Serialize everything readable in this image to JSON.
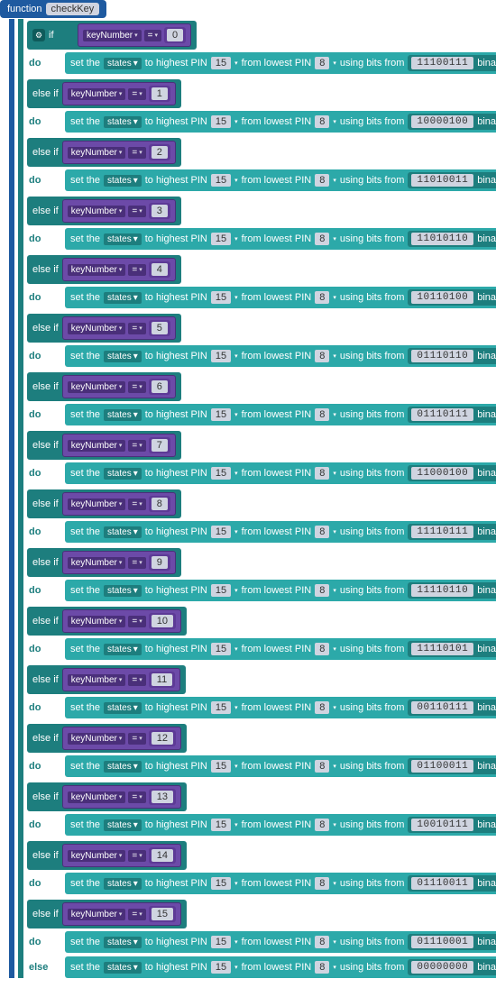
{
  "func": {
    "kw": "function",
    "name": "checkKey"
  },
  "labels": {
    "if": "if",
    "elseif": "else if",
    "else": "else",
    "do": "do",
    "setThe": "set the",
    "states": "states",
    "toHigh": "to highest PIN",
    "fromLow": "from lowest PIN",
    "usingBits": "using bits from",
    "binary": "binary",
    "keyNumber": "keyNumber",
    "eq": "="
  },
  "pins": {
    "high": "15",
    "low": "8"
  },
  "branches": [
    {
      "kw": "if",
      "n": "0",
      "bits": "11100111"
    },
    {
      "kw": "else if",
      "n": "1",
      "bits": "10000100"
    },
    {
      "kw": "else if",
      "n": "2",
      "bits": "11010011"
    },
    {
      "kw": "else if",
      "n": "3",
      "bits": "11010110"
    },
    {
      "kw": "else if",
      "n": "4",
      "bits": "10110100"
    },
    {
      "kw": "else if",
      "n": "5",
      "bits": "01110110"
    },
    {
      "kw": "else if",
      "n": "6",
      "bits": "01110111"
    },
    {
      "kw": "else if",
      "n": "7",
      "bits": "11000100"
    },
    {
      "kw": "else if",
      "n": "8",
      "bits": "11110111"
    },
    {
      "kw": "else if",
      "n": "9",
      "bits": "11110110"
    },
    {
      "kw": "else if",
      "n": "10",
      "bits": "11110101"
    },
    {
      "kw": "else if",
      "n": "11",
      "bits": "00110111"
    },
    {
      "kw": "else if",
      "n": "12",
      "bits": "01100011"
    },
    {
      "kw": "else if",
      "n": "13",
      "bits": "10010111"
    },
    {
      "kw": "else if",
      "n": "14",
      "bits": "01110011"
    },
    {
      "kw": "else if",
      "n": "15",
      "bits": "01110001"
    }
  ],
  "elseBits": "00000000",
  "colors": {
    "funcHeader": "#1e5aa0",
    "ifBlock": "#1d7e7e",
    "setBlock": "#2ca9a9",
    "cmpBlock": "#6c4aa8",
    "cmpInner": "#4a2f7a",
    "numBox": "#cfd4e0"
  }
}
